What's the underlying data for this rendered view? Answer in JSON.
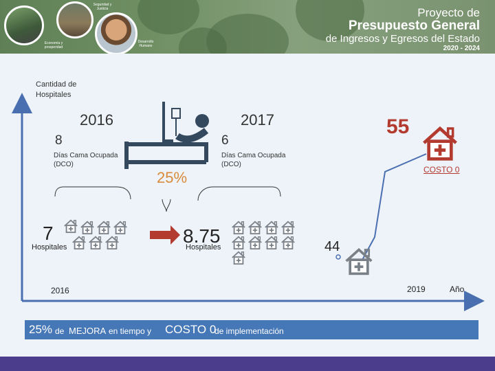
{
  "header": {
    "badge_top": "Seguridad y Justicia",
    "badge_left": "Economía y prosperidad",
    "badge_right": "Desarrollo Humano",
    "title_line1": "Proyecto de",
    "title_line2": "Presupuesto General",
    "title_line3": "de Ingresos y Egresos del Estado",
    "title_line4": "2020 - 2024"
  },
  "y_axis_label_line1": "Cantidad de",
  "y_axis_label_line2": "Hospitales",
  "x_axis_label": "Año",
  "left_panel": {
    "year": "2016",
    "value": "8",
    "dco_line1": "Días Cama Ocupada",
    "dco_line2": "(DCO)"
  },
  "right_panel": {
    "year": "2017",
    "value": "6",
    "dco_line1": "Días Cama Ocupada",
    "dco_line2": "(DCO)"
  },
  "improvement_percent": "25%",
  "hospitals_before": {
    "value": "7",
    "label": "Hospitales"
  },
  "hospitals_after": {
    "value": "8.75",
    "label": "Hospitales"
  },
  "projection": {
    "value_2019": "44",
    "value_end": "55",
    "cost_label": "COSTO 0"
  },
  "x_ticks": {
    "start": "2016",
    "end": "2019"
  },
  "banner": {
    "pct": "25%",
    "w1": "de",
    "w2": "MEJORA",
    "w3": "en tiempo y",
    "w4": "COSTO 0",
    "w5": "de implementación"
  },
  "colors": {
    "header_green": "#6f8f63",
    "axis_blue": "#4a6fb0",
    "accent_red": "#b33a2e",
    "banner_blue": "#4677b6",
    "footer_purple": "#4b3d8c",
    "house_gray": "#7a8088",
    "percent_orange": "#d98a3a"
  },
  "icons": {
    "bed": "hospital-bed-icon",
    "house": "hospital-house-icon",
    "arrow": "right-arrow-icon"
  }
}
